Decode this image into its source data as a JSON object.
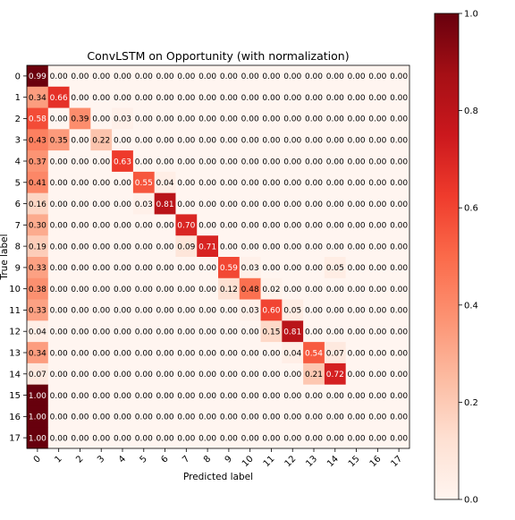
{
  "chart_data": {
    "type": "heatmap",
    "title": "ConvLSTM on Opportunity (with normalization)",
    "xlabel": "Predicted label",
    "ylabel": "True label",
    "labels": [
      "0",
      "1",
      "2",
      "3",
      "4",
      "5",
      "6",
      "7",
      "8",
      "9",
      "10",
      "11",
      "12",
      "13",
      "14",
      "15",
      "16",
      "17"
    ],
    "matrix": [
      [
        0.99,
        0,
        0,
        0,
        0,
        0,
        0,
        0,
        0,
        0,
        0,
        0,
        0,
        0,
        0,
        0,
        0,
        0
      ],
      [
        0.34,
        0.66,
        0,
        0,
        0,
        0,
        0,
        0,
        0,
        0,
        0,
        0,
        0,
        0,
        0,
        0,
        0,
        0
      ],
      [
        0.58,
        0,
        0.39,
        0,
        0.03,
        0,
        0,
        0,
        0,
        0,
        0,
        0,
        0,
        0,
        0,
        0,
        0,
        0
      ],
      [
        0.43,
        0.35,
        0,
        0.22,
        0,
        0,
        0,
        0,
        0,
        0,
        0,
        0,
        0,
        0,
        0,
        0,
        0,
        0
      ],
      [
        0.37,
        0,
        0,
        0,
        0.63,
        0,
        0,
        0,
        0,
        0,
        0,
        0,
        0,
        0,
        0,
        0,
        0,
        0
      ],
      [
        0.41,
        0,
        0,
        0,
        0,
        0.55,
        0.04,
        0,
        0,
        0,
        0,
        0,
        0,
        0,
        0,
        0,
        0,
        0
      ],
      [
        0.16,
        0,
        0,
        0,
        0,
        0.03,
        0.81,
        0,
        0,
        0,
        0,
        0,
        0,
        0,
        0,
        0,
        0,
        0
      ],
      [
        0.3,
        0,
        0,
        0,
        0,
        0,
        0,
        0.7,
        0,
        0,
        0,
        0,
        0,
        0,
        0,
        0,
        0,
        0
      ],
      [
        0.19,
        0,
        0,
        0,
        0,
        0,
        0,
        0.09,
        0.71,
        0,
        0,
        0,
        0,
        0,
        0,
        0,
        0,
        0
      ],
      [
        0.33,
        0,
        0,
        0,
        0,
        0,
        0,
        0,
        0,
        0.59,
        0.03,
        0,
        0,
        0,
        0.05,
        0,
        0,
        0
      ],
      [
        0.38,
        0,
        0,
        0,
        0,
        0,
        0,
        0,
        0,
        0.12,
        0.48,
        0.02,
        0,
        0,
        0,
        0,
        0,
        0
      ],
      [
        0.33,
        0,
        0,
        0,
        0,
        0,
        0,
        0,
        0,
        0,
        0.03,
        0.6,
        0.05,
        0,
        0,
        0,
        0,
        0
      ],
      [
        0.04,
        0,
        0,
        0,
        0,
        0,
        0,
        0,
        0,
        0,
        0,
        0.15,
        0.81,
        0,
        0,
        0,
        0,
        0
      ],
      [
        0.34,
        0,
        0,
        0,
        0,
        0,
        0,
        0,
        0,
        0,
        0,
        0,
        0.04,
        0.54,
        0.07,
        0,
        0,
        0
      ],
      [
        0.07,
        0,
        0,
        0,
        0,
        0,
        0,
        0,
        0,
        0,
        0,
        0,
        0,
        0.21,
        0.72,
        0,
        0,
        0
      ],
      [
        1.0,
        0,
        0,
        0,
        0,
        0,
        0,
        0,
        0,
        0,
        0,
        0,
        0,
        0,
        0,
        0,
        0,
        0
      ],
      [
        1.0,
        0,
        0,
        0,
        0,
        0,
        0,
        0,
        0,
        0,
        0,
        0,
        0,
        0,
        0,
        0,
        0,
        0
      ],
      [
        1.0,
        0,
        0,
        0,
        0,
        0,
        0,
        0,
        0,
        0,
        0,
        0,
        0,
        0,
        0,
        0,
        0,
        0
      ]
    ],
    "value_format": "0.00",
    "vmin": 0.0,
    "vmax": 1.0,
    "colormap": "Reds",
    "colorbar_ticks": [
      "0.0",
      "0.2",
      "0.4",
      "0.6",
      "0.8",
      "1.0"
    ],
    "grid": false,
    "legend": "colorbar-right"
  }
}
